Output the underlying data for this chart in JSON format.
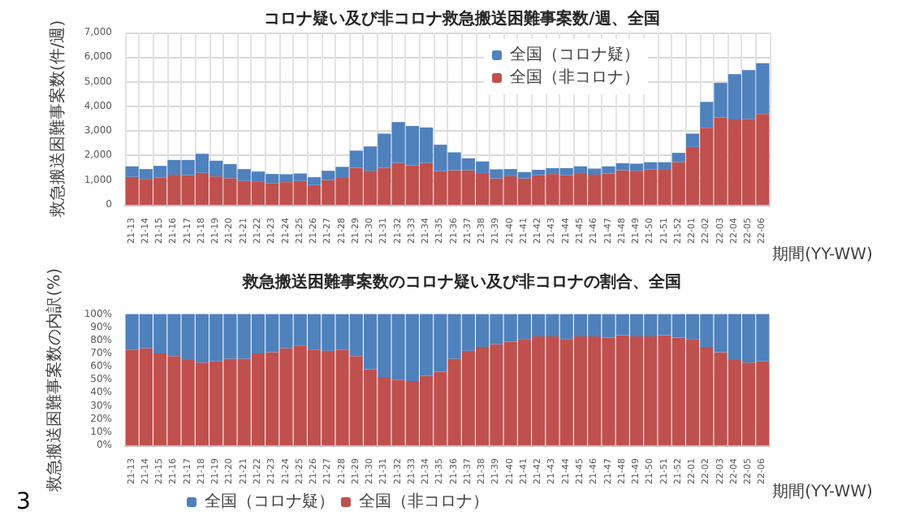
{
  "chart_data": [
    {
      "type": "bar",
      "title": "コロナ疑い及び非コロナ救急搬送困難事案数/週、全国",
      "xlabel": "期間(YY-WW)",
      "ylabel": "救急搬送困難事案数(件/週)",
      "categories": [
        "21-13",
        "21-14",
        "21-15",
        "21-16",
        "21-17",
        "21-18",
        "21-19",
        "21-20",
        "21-21",
        "21-22",
        "21-23",
        "21-24",
        "21-25",
        "21-26",
        "21-27",
        "21-28",
        "21-29",
        "21-30",
        "21-31",
        "21-32",
        "21-33",
        "21-34",
        "21-35",
        "21-36",
        "21-37",
        "21-38",
        "21-39",
        "21-40",
        "21-41",
        "21-42",
        "21-43",
        "21-44",
        "21-45",
        "21-46",
        "21-47",
        "21-48",
        "21-49",
        "21-50",
        "21-51",
        "21-52",
        "22-01",
        "22-02",
        "22-03",
        "22-04",
        "22-05",
        "22-06"
      ],
      "stacked": true,
      "series": [
        {
          "name": "全国（非コロナ）",
          "color": "#c0504d",
          "values": [
            1130,
            1050,
            1100,
            1220,
            1200,
            1300,
            1150,
            1080,
            970,
            950,
            880,
            920,
            970,
            800,
            1000,
            1120,
            1500,
            1380,
            1500,
            1700,
            1600,
            1700,
            1370,
            1400,
            1400,
            1290,
            1070,
            1160,
            1070,
            1200,
            1250,
            1200,
            1290,
            1220,
            1270,
            1400,
            1380,
            1440,
            1450,
            1730,
            2350,
            3130,
            3550,
            3470,
            3490,
            3690
          ]
        },
        {
          "name": "全国（コロナ疑）",
          "color": "#4f81bd",
          "values": [
            430,
            400,
            480,
            600,
            620,
            770,
            640,
            570,
            480,
            400,
            370,
            320,
            300,
            320,
            380,
            420,
            700,
            990,
            1390,
            1660,
            1600,
            1440,
            1070,
            730,
            490,
            470,
            370,
            290,
            260,
            220,
            240,
            290,
            270,
            250,
            290,
            290,
            290,
            290,
            280,
            380,
            540,
            1050,
            1400,
            1840,
            1980,
            2060
          ]
        }
      ],
      "ylim": [
        0,
        7000
      ],
      "yticks": [
        0,
        {
          "value": 1000,
          "label": "1,000"
        },
        {
          "value": 2000,
          "label": "2,000"
        },
        {
          "value": 3000,
          "label": "3,000"
        },
        {
          "value": 4000,
          "label": "4,000"
        },
        {
          "value": 5000,
          "label": "5,000"
        },
        {
          "value": 6000,
          "label": "6,000"
        },
        {
          "value": 7000,
          "label": "7,000"
        }
      ],
      "grid": true,
      "legend": "top right"
    },
    {
      "type": "bar",
      "title": "救急搬送困難事案数のコロナ疑い及び非コロナの割合、全国",
      "xlabel": "期間(YY-WW)",
      "ylabel": "救急搬送困難事案数の内訳(%)",
      "categories": [
        "21-13",
        "21-14",
        "21-15",
        "21-16",
        "21-17",
        "21-18",
        "21-19",
        "21-20",
        "21-21",
        "21-22",
        "21-23",
        "21-24",
        "21-25",
        "21-26",
        "21-27",
        "21-28",
        "21-29",
        "21-30",
        "21-31",
        "21-32",
        "21-33",
        "21-34",
        "21-35",
        "21-36",
        "21-37",
        "21-38",
        "21-39",
        "21-40",
        "21-41",
        "21-42",
        "21-43",
        "21-44",
        "21-45",
        "21-46",
        "21-47",
        "21-48",
        "21-49",
        "21-50",
        "21-51",
        "21-52",
        "22-01",
        "22-02",
        "22-03",
        "22-04",
        "22-05",
        "22-06"
      ],
      "stacked": true,
      "series": [
        {
          "name": "全国（非コロナ）",
          "color": "#c0504d",
          "values": [
            73,
            74,
            70,
            68,
            65,
            63,
            64,
            66,
            66,
            70,
            71,
            74,
            76,
            73,
            72,
            73,
            68,
            58,
            52,
            50,
            49,
            53,
            56,
            66,
            72,
            75,
            77,
            79,
            81,
            83,
            83,
            81,
            83,
            83,
            82,
            84,
            83,
            83,
            84,
            82,
            81,
            75,
            71,
            65,
            63,
            64
          ]
        },
        {
          "name": "全国（コロナ疑）",
          "color": "#4f81bd",
          "values": [
            27,
            26,
            30,
            32,
            35,
            37,
            36,
            34,
            34,
            30,
            29,
            26,
            24,
            27,
            28,
            27,
            32,
            42,
            48,
            50,
            51,
            47,
            44,
            34,
            28,
            25,
            23,
            21,
            19,
            17,
            17,
            19,
            17,
            17,
            18,
            16,
            17,
            17,
            16,
            18,
            19,
            25,
            29,
            35,
            37,
            36
          ]
        }
      ],
      "ylim": [
        0,
        100
      ],
      "yticks": [
        {
          "value": 0,
          "label": "0%"
        },
        {
          "value": 10,
          "label": "10%"
        },
        {
          "value": 20,
          "label": "20%"
        },
        {
          "value": 30,
          "label": "30%"
        },
        {
          "value": 40,
          "label": "40%"
        },
        {
          "value": 50,
          "label": "50%"
        },
        {
          "value": 60,
          "label": "60%"
        },
        {
          "value": 70,
          "label": "70%"
        },
        {
          "value": 80,
          "label": "80%"
        },
        {
          "value": 90,
          "label": "90%"
        },
        {
          "value": 100,
          "label": "100%"
        }
      ],
      "grid": false,
      "legend": "bottom left",
      "annotations": [
        "3"
      ]
    }
  ]
}
